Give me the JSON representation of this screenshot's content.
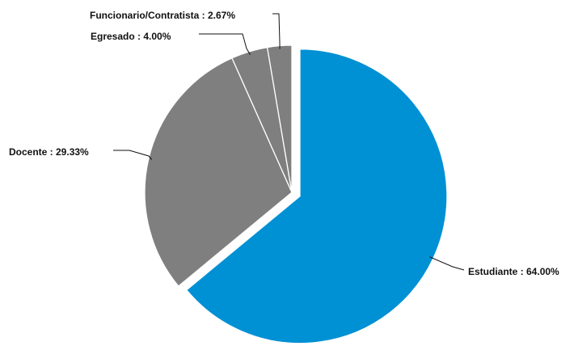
{
  "chart_data": {
    "type": "pie",
    "title": "",
    "slices": [
      {
        "name": "Estudiante",
        "value": 64.0,
        "label": "Estudiante : 64.00%",
        "color": "#0090d4",
        "exploded": true
      },
      {
        "name": "Docente",
        "value": 29.33,
        "label": "Docente : 29.33%",
        "color": "#7f7f7f",
        "exploded": false
      },
      {
        "name": "Egresado",
        "value": 4.0,
        "label": "Egresado : 4.00%",
        "color": "#7f7f7f",
        "exploded": false
      },
      {
        "name": "Funcionario/Contratista",
        "value": 2.67,
        "label": "Funcionario/Contratista : 2.67%",
        "color": "#7f7f7f",
        "exploded": false
      }
    ],
    "legend": "none",
    "start_angle": "12 o'clock, clockwise"
  }
}
